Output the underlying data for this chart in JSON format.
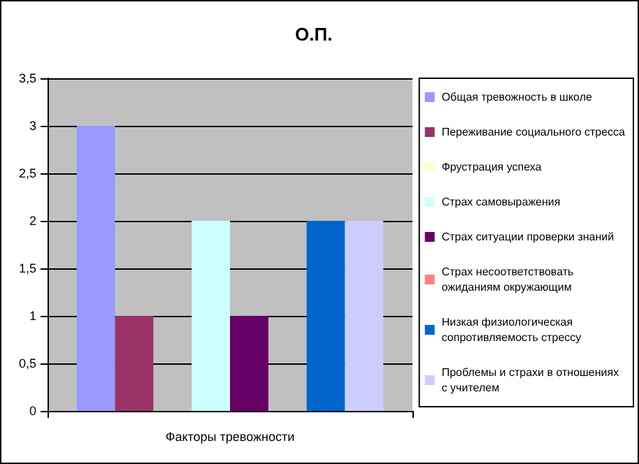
{
  "chart_data": {
    "type": "bar",
    "title": "О.П.",
    "categories": [
      "Факторы тревожности"
    ],
    "series": [
      {
        "name": "Общая тревожность в школе",
        "color": "#9999ff",
        "values": [
          3
        ]
      },
      {
        "name": "Переживание социального стресса",
        "color": "#993366",
        "values": [
          1
        ]
      },
      {
        "name": "Фрустрация успеха",
        "color": "#ffffcc",
        "values": [
          0
        ]
      },
      {
        "name": "Страх самовыражения",
        "color": "#ccffff",
        "values": [
          2
        ]
      },
      {
        "name": "Страх ситуации проверки знаний",
        "color": "#660066",
        "values": [
          1
        ]
      },
      {
        "name": "Страх несоответствовать ожиданиям окружающим",
        "color": "#ff8080",
        "values": [
          0
        ]
      },
      {
        "name": "Низкая физиологическая сопротивляемость стрессу",
        "color": "#0066cc",
        "values": [
          2
        ]
      },
      {
        "name": "Проблемы и страхи в отношениях с учителем",
        "color": "#ccccff",
        "values": [
          2
        ]
      }
    ],
    "ylim": [
      0,
      3.5
    ],
    "yticks": [
      0,
      {
        "value": 0.5,
        "label": "0,5"
      },
      1,
      {
        "value": 1.5,
        "label": "1,5"
      },
      2,
      {
        "value": 2.5,
        "label": "2,5"
      },
      3,
      {
        "value": 3.5,
        "label": "3,5"
      }
    ],
    "grid": "y",
    "legend": "right"
  }
}
